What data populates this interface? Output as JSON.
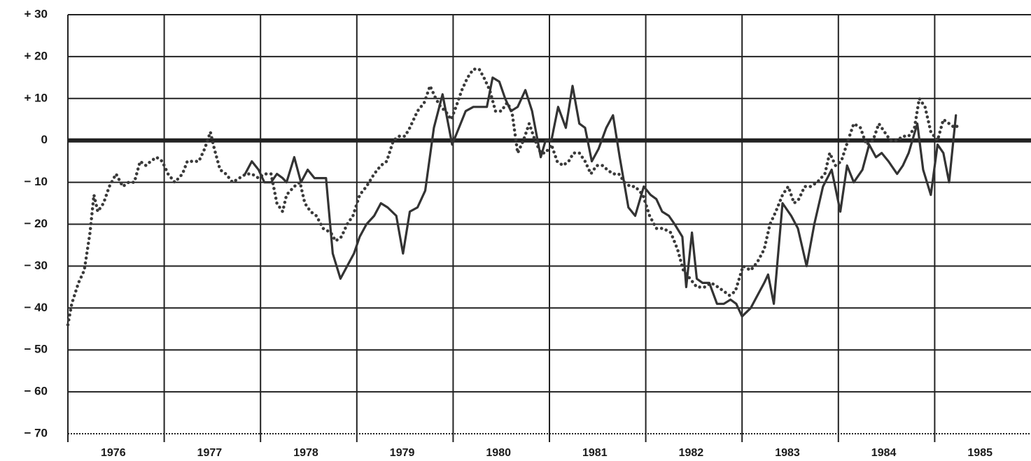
{
  "chart_data": {
    "type": "line",
    "categories": [
      "1976",
      "1977",
      "1978",
      "1979",
      "1980",
      "1981",
      "1982",
      "1983",
      "1984",
      "1985"
    ],
    "xlim": [
      1976,
      1986
    ],
    "ylim": [
      -70,
      30
    ],
    "yticks": [
      {
        "value": 30,
        "label": "+ 30"
      },
      {
        "value": 20,
        "label": "+ 20"
      },
      {
        "value": 10,
        "label": "+ 10"
      },
      0,
      {
        "value": -10,
        "label": "− 10"
      },
      {
        "value": -20,
        "label": "− 20"
      },
      {
        "value": -30,
        "label": "− 30"
      },
      {
        "value": -40,
        "label": "− 40"
      },
      {
        "value": -50,
        "label": "− 50"
      },
      {
        "value": -60,
        "label": "− 60"
      },
      {
        "value": -70,
        "label": "− 70"
      }
    ],
    "grid": true,
    "zero_line": true,
    "series": [
      {
        "color": "#3a3a3a",
        "style": "dotted",
        "x": [
          1976.0,
          1976.04,
          1976.11,
          1976.17,
          1976.23,
          1976.27,
          1976.31,
          1976.37,
          1976.43,
          1976.5,
          1976.57,
          1976.63,
          1976.69,
          1976.75,
          1976.81,
          1976.86,
          1976.92,
          1976.98,
          1977.04,
          1977.11,
          1977.19,
          1977.24,
          1977.3,
          1977.36,
          1977.42,
          1977.48,
          1977.52,
          1977.58,
          1977.64,
          1977.71,
          1977.78,
          1977.85,
          1977.91,
          1977.98,
          1978.04,
          1978.11,
          1978.17,
          1978.23,
          1978.27,
          1978.35,
          1978.41,
          1978.46,
          1978.52,
          1978.58,
          1978.65,
          1978.73,
          1978.78,
          1978.84,
          1978.9,
          1978.96,
          1979.03,
          1979.1,
          1979.18,
          1979.25,
          1979.31,
          1979.38,
          1979.44,
          1979.5,
          1979.55,
          1979.63,
          1979.7,
          1979.76,
          1979.82,
          1979.87,
          1979.92,
          1979.98,
          1980.03,
          1980.09,
          1980.15,
          1980.21,
          1980.27,
          1980.32,
          1980.38,
          1980.44,
          1980.5,
          1980.56,
          1980.61,
          1980.67,
          1980.73,
          1980.79,
          1980.85,
          1980.91,
          1980.96,
          1981.02,
          1981.08,
          1981.14,
          1981.2,
          1981.25,
          1981.31,
          1981.37,
          1981.43,
          1981.49,
          1981.55,
          1981.6,
          1981.66,
          1981.72,
          1981.78,
          1981.84,
          1981.89,
          1981.97,
          1982.04,
          1982.11,
          1982.18,
          1982.26,
          1982.33,
          1982.39,
          1982.46,
          1982.53,
          1982.61,
          1982.68,
          1982.75,
          1982.81,
          1982.87,
          1982.93,
          1982.97,
          1983.01,
          1983.09,
          1983.16,
          1983.23,
          1983.29,
          1983.35,
          1983.42,
          1983.48,
          1983.54,
          1983.59,
          1983.65,
          1983.71,
          1983.78,
          1983.86,
          1983.91,
          1983.97,
          1984.03,
          1984.1,
          1984.16,
          1984.23,
          1984.29,
          1984.36,
          1984.42,
          1984.48,
          1984.54,
          1984.61,
          1984.67,
          1984.73,
          1984.79,
          1984.84,
          1984.9,
          1984.96,
          1985.03,
          1985.09,
          1985.15,
          1985.21,
          1985.27
        ],
        "values": [
          -44,
          -39,
          -34,
          -31,
          -22,
          -13,
          -17,
          -15,
          -11,
          -8,
          -11,
          -10,
          -10,
          -5,
          -6,
          -5,
          -4,
          -5,
          -8,
          -10,
          -8,
          -5,
          -5,
          -5,
          -2,
          2,
          -2,
          -7,
          -8,
          -10,
          -9,
          -8,
          -8,
          -9,
          -8,
          -8,
          -15,
          -17,
          -13,
          -11,
          -10,
          -15,
          -17,
          -18,
          -21,
          -22,
          -24,
          -23,
          -20,
          -18,
          -13,
          -11,
          -8,
          -6,
          -5,
          0,
          1,
          1,
          3,
          7,
          9,
          13,
          10,
          8,
          7,
          5,
          8,
          12,
          15,
          17,
          17,
          15,
          12,
          7,
          7,
          9,
          7,
          -3,
          0,
          4,
          0,
          -3,
          -3,
          -1,
          -5,
          -6,
          -5,
          -3,
          -3,
          -5,
          -8,
          -6,
          -6,
          -7,
          -8,
          -8,
          -10,
          -11,
          -11,
          -13,
          -18,
          -21,
          -21,
          -22,
          -26,
          -31,
          -33,
          -35,
          -35,
          -34,
          -35,
          -36,
          -37,
          -36,
          -33,
          -30,
          -31,
          -29,
          -26,
          -20,
          -17,
          -13,
          -11,
          -15,
          -14,
          -11,
          -11,
          -10,
          -8,
          -3,
          -6,
          -5,
          0,
          4,
          3,
          -1,
          0,
          4,
          2,
          0,
          0,
          1,
          1,
          3,
          10,
          8,
          2,
          0,
          5,
          4,
          3,
          4
        ]
      },
      {
        "color": "#333333",
        "style": "solid",
        "x": [
          1977.84,
          1977.91,
          1977.98,
          1978.04,
          1978.11,
          1978.17,
          1978.23,
          1978.27,
          1978.35,
          1978.42,
          1978.49,
          1978.56,
          1978.62,
          1978.68,
          1978.75,
          1978.83,
          1978.9,
          1978.97,
          1979.03,
          1979.1,
          1979.18,
          1979.25,
          1979.32,
          1979.41,
          1979.48,
          1979.55,
          1979.63,
          1979.71,
          1979.8,
          1979.89,
          1979.99,
          1980.06,
          1980.13,
          1980.21,
          1980.3,
          1980.35,
          1980.41,
          1980.48,
          1980.54,
          1980.6,
          1980.67,
          1980.75,
          1980.82,
          1980.91,
          1980.96,
          1981.02,
          1981.09,
          1981.17,
          1981.24,
          1981.31,
          1981.37,
          1981.44,
          1981.51,
          1981.59,
          1981.66,
          1981.73,
          1981.82,
          1981.89,
          1981.98,
          1982.05,
          1982.11,
          1982.17,
          1982.24,
          1982.3,
          1982.38,
          1982.42,
          1982.48,
          1982.53,
          1982.59,
          1982.66,
          1982.74,
          1982.81,
          1982.88,
          1982.94,
          1983.0,
          1983.09,
          1983.16,
          1983.23,
          1983.27,
          1983.33,
          1983.42,
          1983.51,
          1983.58,
          1983.67,
          1983.75,
          1983.84,
          1983.93,
          1984.02,
          1984.09,
          1984.16,
          1984.25,
          1984.32,
          1984.39,
          1984.45,
          1984.52,
          1984.61,
          1984.67,
          1984.73,
          1984.82,
          1984.88,
          1984.96,
          1985.03,
          1985.09,
          1985.15,
          1985.22
        ],
        "values": [
          -8,
          -5,
          -7,
          -10,
          -10,
          -8,
          -9,
          -10,
          -4,
          -10,
          -7,
          -9,
          -9,
          -9,
          -27,
          -33,
          -30,
          -27,
          -23,
          -20,
          -18,
          -15,
          -16,
          -18,
          -27,
          -17,
          -16,
          -12,
          3,
          11,
          -1,
          3,
          7,
          8,
          8,
          8,
          15,
          14,
          10,
          7,
          8,
          12,
          7,
          -4,
          0,
          0,
          8,
          3,
          13,
          4,
          3,
          -5,
          -2,
          3,
          6,
          -4,
          -16,
          -18,
          -11,
          -13,
          -14,
          -17,
          -18,
          -20,
          -23,
          -35,
          -22,
          -33,
          -34,
          -34,
          -39,
          -39,
          -38,
          -39,
          -42,
          -40,
          -37,
          -34,
          -32,
          -39,
          -15,
          -18,
          -21,
          -30,
          -20,
          -11,
          -7,
          -17,
          -6,
          -10,
          -7,
          -1,
          -4,
          -3,
          -5,
          -8,
          -6,
          -3,
          4,
          -7,
          -13,
          -1,
          -3,
          -10,
          6
        ]
      }
    ]
  }
}
